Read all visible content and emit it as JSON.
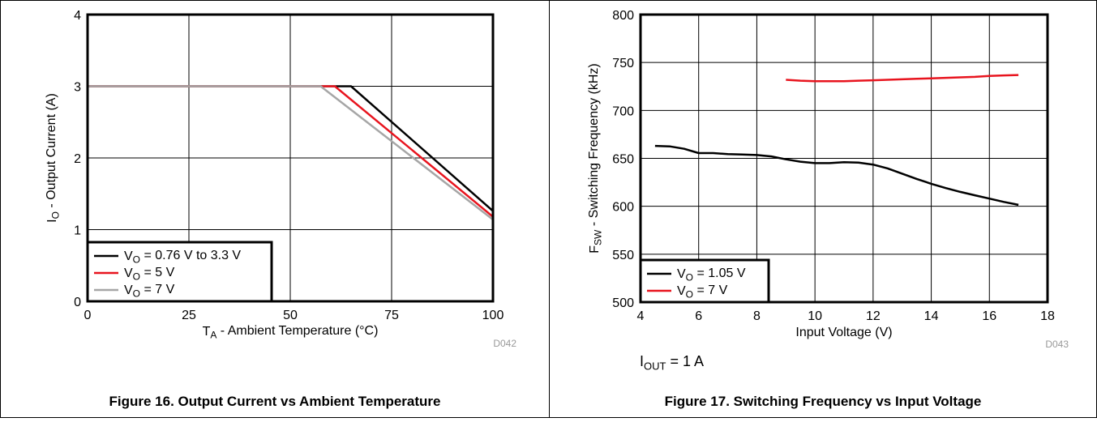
{
  "figures": [
    {
      "caption": "Figure 16. Output Current vs Ambient Temperature",
      "code": "D042"
    },
    {
      "caption": "Figure 17. Switching Frequency vs Input Voltage",
      "code": "D043",
      "note_main": "I",
      "note_sub": "OUT",
      "note_tail": " = 1 A"
    }
  ],
  "chart_data": [
    {
      "type": "line",
      "xlabel": "T_A - Ambient Temperature (°C)",
      "ylabel": "I_O - Output Current (A)",
      "xlim": [
        0,
        100
      ],
      "ylim": [
        0,
        4
      ],
      "xticks": [
        0,
        25,
        50,
        75,
        100
      ],
      "yticks": [
        0,
        1,
        2,
        3,
        4
      ],
      "grid": true,
      "legend_position": "bottom-left",
      "series": [
        {
          "name": "V_O = 0.76 V to 3.3 V",
          "color": "#000000",
          "x": [
            0,
            65,
            100
          ],
          "y": [
            3,
            3,
            1.26
          ]
        },
        {
          "name": "V_O = 5 V",
          "color": "#e8141e",
          "x": [
            0,
            61,
            100
          ],
          "y": [
            3,
            3,
            1.18
          ]
        },
        {
          "name": "V_O = 7 V",
          "color": "#a6a6a6",
          "x": [
            0,
            57.5,
            100
          ],
          "y": [
            3,
            3,
            1.14
          ]
        }
      ]
    },
    {
      "type": "line",
      "xlabel": "Input Voltage (V)",
      "ylabel": "F_SW - Switching Frequency (kHz)",
      "xlim": [
        4,
        18
      ],
      "ylim": [
        500,
        800
      ],
      "xticks": [
        4,
        6,
        8,
        10,
        12,
        14,
        16,
        18
      ],
      "yticks": [
        500,
        550,
        600,
        650,
        700,
        750,
        800
      ],
      "grid": true,
      "legend_position": "bottom-left",
      "series": [
        {
          "name": "V_O = 1.05 V",
          "color": "#000000",
          "x": [
            4.5,
            5,
            5.5,
            6,
            6.5,
            7,
            7.5,
            8,
            8.5,
            9,
            9.5,
            10,
            10.5,
            11,
            11.5,
            12,
            12.5,
            13,
            13.5,
            14,
            14.5,
            15,
            15.5,
            16,
            16.5,
            17
          ],
          "y": [
            663,
            662.5,
            660,
            655.5,
            655.5,
            654.5,
            654,
            653.5,
            652,
            649,
            646.5,
            645,
            645,
            646,
            645.5,
            643.5,
            639.5,
            634,
            628.5,
            623.5,
            619,
            615,
            611.5,
            608,
            604.5,
            601.5
          ]
        },
        {
          "name": "V_O = 7 V",
          "color": "#e8141e",
          "x": [
            9,
            9.5,
            10,
            10.5,
            11,
            11.5,
            12,
            12.5,
            13,
            13.5,
            14,
            14.5,
            15,
            15.5,
            16,
            16.5,
            17
          ],
          "y": [
            732,
            731,
            730.5,
            730.5,
            730.5,
            731,
            731.5,
            732,
            732.5,
            733,
            733.5,
            734,
            734.5,
            735,
            736,
            736.5,
            737
          ]
        }
      ]
    }
  ]
}
